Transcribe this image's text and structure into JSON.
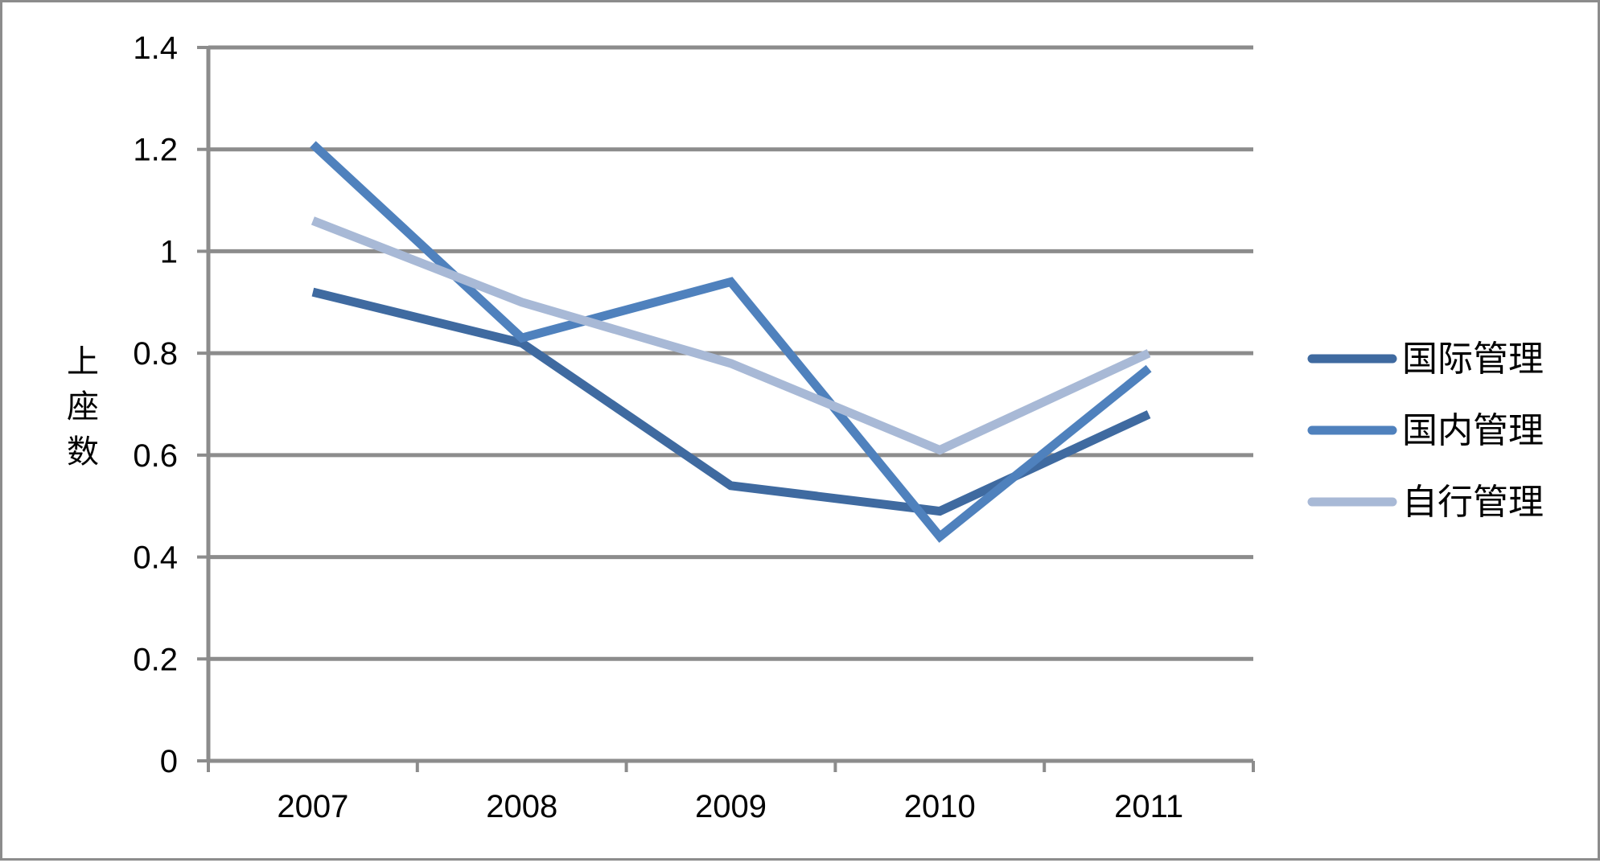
{
  "chart_data": {
    "type": "line",
    "title": "",
    "xlabel": "",
    "ylabel": "上座数",
    "categories": [
      "2007",
      "2008",
      "2009",
      "2010",
      "2011"
    ],
    "ylim": [
      0,
      1.4
    ],
    "yticks": [
      "0",
      "0.2",
      "0.4",
      "0.6",
      "0.8",
      "1",
      "1.2",
      "1.4"
    ],
    "grid": true,
    "legend_position": "right",
    "series": [
      {
        "name": "国际管理",
        "values": [
          0.92,
          0.82,
          0.54,
          0.49,
          0.68
        ],
        "color": "#3f6aa0"
      },
      {
        "name": "国内管理",
        "values": [
          1.21,
          0.83,
          0.94,
          0.44,
          0.77
        ],
        "color": "#4f81bd"
      },
      {
        "name": "自行管理",
        "values": [
          1.06,
          0.9,
          0.78,
          0.61,
          0.8
        ],
        "color": "#a8b9d6"
      }
    ],
    "colors": {
      "grid": "#8c8c8c",
      "axis": "#8c8c8c",
      "border": "#8c8c8c"
    }
  }
}
